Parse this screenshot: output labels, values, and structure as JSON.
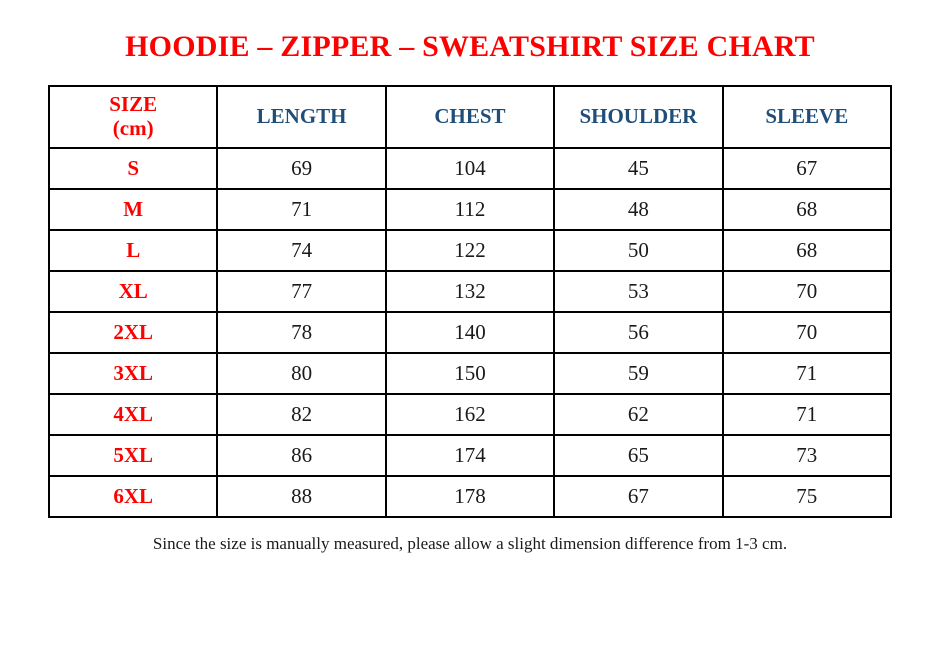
{
  "page": {
    "top_dot": ".",
    "title": "HOODIE – ZIPPER – SWEATSHIRT SIZE CHART",
    "footnote": "Since the size is manually measured, please allow a slight dimension difference from 1-3 cm."
  },
  "colors": {
    "title_red": "#fe0000",
    "header_blue": "#1f4e79",
    "body_black": "#1a1a1a",
    "border_black": "#000000"
  },
  "table": {
    "columns": [
      {
        "label": "SIZE\n(cm)",
        "style": "red"
      },
      {
        "label": "LENGTH",
        "style": "blue"
      },
      {
        "label": "CHEST",
        "style": "blue"
      },
      {
        "label": "SHOULDER",
        "style": "blue"
      },
      {
        "label": "SLEEVE",
        "style": "blue"
      }
    ],
    "rows": [
      {
        "size": "S",
        "length": "69",
        "chest": "104",
        "shoulder": "45",
        "sleeve": "67"
      },
      {
        "size": "M",
        "length": "71",
        "chest": "112",
        "shoulder": "48",
        "sleeve": "68"
      },
      {
        "size": "L",
        "length": "74",
        "chest": "122",
        "shoulder": "50",
        "sleeve": "68"
      },
      {
        "size": "XL",
        "length": "77",
        "chest": "132",
        "shoulder": "53",
        "sleeve": "70"
      },
      {
        "size": "2XL",
        "length": "78",
        "chest": "140",
        "shoulder": "56",
        "sleeve": "70"
      },
      {
        "size": "3XL",
        "length": "80",
        "chest": "150",
        "shoulder": "59",
        "sleeve": "71"
      },
      {
        "size": "4XL",
        "length": "82",
        "chest": "162",
        "shoulder": "62",
        "sleeve": "71"
      },
      {
        "size": "5XL",
        "length": "86",
        "chest": "174",
        "shoulder": "65",
        "sleeve": "73"
      },
      {
        "size": "6XL",
        "length": "88",
        "chest": "178",
        "shoulder": "67",
        "sleeve": "75"
      }
    ]
  }
}
